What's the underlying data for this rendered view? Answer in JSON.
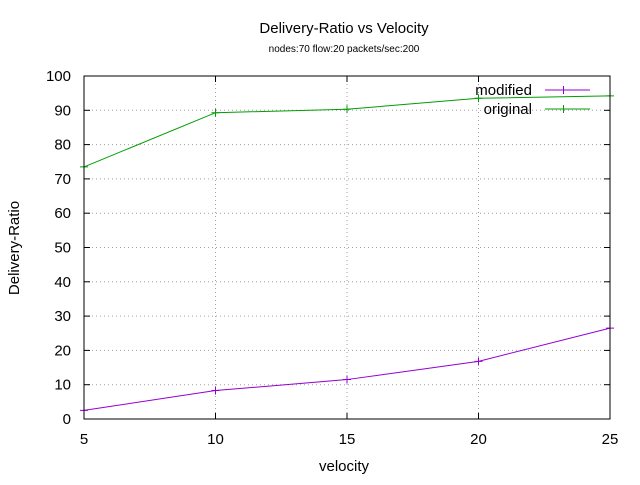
{
  "chart_data": {
    "type": "line",
    "title": "Delivery-Ratio vs Velocity",
    "subtitle": "nodes:70  flow:20  packets/sec:200",
    "xlabel": "velocity",
    "ylabel": "Delivery-Ratio",
    "x": [
      5,
      10,
      15,
      20,
      25
    ],
    "xlim": [
      5,
      25
    ],
    "ylim": [
      0,
      100
    ],
    "x_ticks": [
      "5",
      "10",
      "15",
      "20",
      "25"
    ],
    "y_ticks": [
      "0",
      "10",
      "20",
      "30",
      "40",
      "50",
      "60",
      "70",
      "80",
      "90",
      "100"
    ],
    "grid": true,
    "legend_position": "top-right",
    "series": [
      {
        "name": "modified",
        "color": "#9400d3",
        "values": [
          2.5,
          8.3,
          11.5,
          16.8,
          26.5
        ]
      },
      {
        "name": "original",
        "color": "#009e00",
        "values": [
          73.5,
          89.3,
          90.3,
          93.5,
          94.2
        ]
      }
    ]
  }
}
